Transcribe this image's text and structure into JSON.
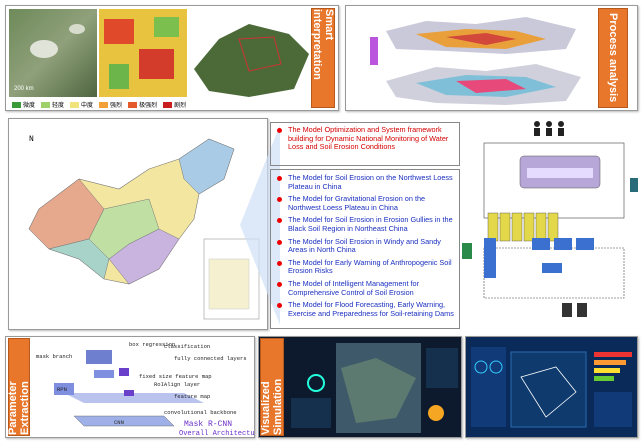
{
  "smart_interpretation": {
    "label": "Smart interpretation",
    "scale": "200 km",
    "legend": [
      "微度",
      "轻度",
      "中度",
      "强烈",
      "极强烈",
      "剧烈"
    ]
  },
  "process_analysis": {
    "label": "Process analysis"
  },
  "models": {
    "main": "The Model Optimization and System framework building for Dynamic National Monitoring of Water Loss and Soil Erosion Conditions",
    "items": [
      "The Model for Soil Erosion on the Northwest Loess Plateau in China",
      "The Model for Gravitational Erosion on the Northwest Loess Plateau in China",
      "The Model for Soil Erosion in Erosion Gullies in the Black Soil Region in Northeast China",
      "The Model for Soil Erosion in Windy and Sandy Areas in North China",
      "The Model for Early Warning of Anthropogenic Soil Erosion Risks",
      "The Model of Intelligent Management for Comprehensive Control of Soil Erosion",
      "The Model for Flood Forecasting, Early Warning, Exercise and Preparedness for Soil-retaining Dams"
    ]
  },
  "parameter_extraction": {
    "label": "Parameter Extraction",
    "diagram": {
      "box_regression": "box regression",
      "classification": "classification",
      "fc": "fully connected layers",
      "fixed": "fixed size feature map",
      "roialign": "RoIAlign layer",
      "feature_map": "feature map",
      "backbone": "convolutional backbone",
      "title": "Mask R-CNN",
      "subtitle": "Overall Architecture",
      "mask": "mask branch",
      "rpn": "RPN",
      "cnn": "CNN"
    }
  },
  "visualized_simulation": {
    "label": "Visualized Simulation"
  }
}
